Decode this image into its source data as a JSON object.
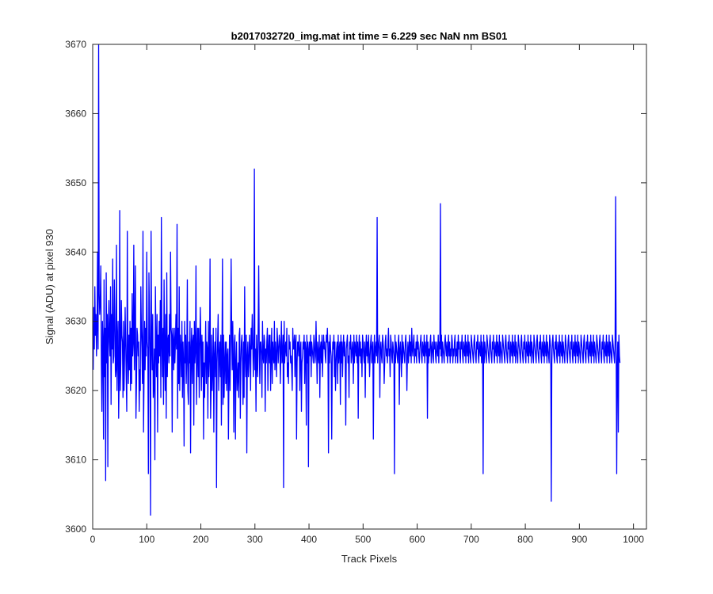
{
  "chart_data": {
    "type": "line",
    "title": "b2017032720_img.mat int time = 6.229 sec  NaN nm BS01",
    "xlabel": "Track Pixels",
    "ylabel": "Signal (ADU) at pixel 930",
    "xlim": [
      0,
      1024
    ],
    "ylim": [
      3600,
      3670
    ],
    "xticks": [
      0,
      100,
      200,
      300,
      400,
      500,
      600,
      700,
      800,
      900,
      1000
    ],
    "yticks": [
      3600,
      3610,
      3620,
      3630,
      3640,
      3650,
      3660,
      3670
    ],
    "grid": false,
    "legend": "none",
    "series": [
      {
        "color": "#0000ff",
        "x_start": 1,
        "x_step": 1,
        "values": [
          3623,
          3632,
          3626,
          3635,
          3628,
          3631,
          3625,
          3629,
          3640,
          3626,
          3670,
          3634,
          3631,
          3633,
          3638,
          3624,
          3617,
          3630,
          3627,
          3613,
          3636,
          3622,
          3629,
          3607,
          3637,
          3624,
          3631,
          3609,
          3629,
          3633,
          3627,
          3625,
          3635,
          3618,
          3631,
          3626,
          3639,
          3624,
          3625,
          3636,
          3631,
          3622,
          3623,
          3641,
          3620,
          3627,
          3630,
          3616,
          3622,
          3646,
          3620,
          3624,
          3633,
          3628,
          3627,
          3619,
          3630,
          3620,
          3625,
          3632,
          3627,
          3622,
          3617,
          3643,
          3625,
          3621,
          3628,
          3623,
          3630,
          3620,
          3629,
          3621,
          3634,
          3625,
          3627,
          3641,
          3623,
          3628,
          3638,
          3616,
          3621,
          3629,
          3628,
          3625,
          3627,
          3617,
          3623,
          3620,
          3635,
          3629,
          3626,
          3621,
          3643,
          3614,
          3622,
          3630,
          3623,
          3629,
          3625,
          3640,
          3627,
          3626,
          3608,
          3637,
          3631,
          3625,
          3602,
          3643,
          3627,
          3623,
          3631,
          3619,
          3621,
          3626,
          3610,
          3635,
          3627,
          3622,
          3631,
          3614,
          3628,
          3624,
          3630,
          3625,
          3633,
          3619,
          3645,
          3627,
          3622,
          3629,
          3618,
          3636,
          3626,
          3620,
          3631,
          3616,
          3637,
          3622,
          3627,
          3628,
          3624,
          3631,
          3625,
          3640,
          3629,
          3628,
          3614,
          3629,
          3627,
          3623,
          3629,
          3624,
          3627,
          3631,
          3626,
          3644,
          3616,
          3629,
          3621,
          3635,
          3620,
          3628,
          3626,
          3622,
          3630,
          3619,
          3627,
          3624,
          3612,
          3630,
          3624,
          3628,
          3621,
          3625,
          3636,
          3620,
          3618,
          3627,
          3624,
          3630,
          3611,
          3626,
          3629,
          3621,
          3627,
          3628,
          3615,
          3630,
          3624,
          3626,
          3638,
          3618,
          3625,
          3629,
          3622,
          3629,
          3619,
          3626,
          3632,
          3627,
          3620,
          3628,
          3622,
          3627,
          3613,
          3624,
          3619,
          3625,
          3630,
          3621,
          3627,
          3626,
          3616,
          3630,
          3622,
          3625,
          3639,
          3616,
          3620,
          3628,
          3620,
          3623,
          3629,
          3614,
          3625,
          3627,
          3622,
          3629,
          3606,
          3624,
          3627,
          3631,
          3620,
          3625,
          3627,
          3622,
          3628,
          3615,
          3625,
          3639,
          3618,
          3628,
          3619,
          3624,
          3627,
          3621,
          3627,
          3620,
          3625,
          3626,
          3613,
          3622,
          3628,
          3620,
          3627,
          3639,
          3629,
          3623,
          3630,
          3624,
          3614,
          3627,
          3628,
          3613,
          3624,
          3627,
          3620,
          3622,
          3624,
          3619,
          3628,
          3629,
          3616,
          3624,
          3627,
          3628,
          3624,
          3618,
          3627,
          3619,
          3635,
          3625,
          3622,
          3628,
          3611,
          3625,
          3627,
          3622,
          3624,
          3628,
          3626,
          3620,
          3629,
          3626,
          3631,
          3627,
          3622,
          3625,
          3652,
          3623,
          3626,
          3617,
          3628,
          3624,
          3622,
          3629,
          3638,
          3626,
          3621,
          3627,
          3627,
          3625,
          3619,
          3630,
          3625,
          3624,
          3628,
          3627,
          3617,
          3626,
          3624,
          3627,
          3629,
          3620,
          3626,
          3628,
          3624,
          3628,
          3620,
          3625,
          3629,
          3621,
          3627,
          3625,
          3624,
          3630,
          3623,
          3627,
          3625,
          3622,
          3629,
          3627,
          3624,
          3626,
          3628,
          3627,
          3621,
          3626,
          3630,
          3624,
          3625,
          3628,
          3606,
          3630,
          3624,
          3626,
          3627,
          3625,
          3629,
          3622,
          3624,
          3621,
          3628,
          3626,
          3627,
          3624,
          3625,
          3623,
          3620,
          3629,
          3626,
          3626,
          3628,
          3622,
          3627,
          3628,
          3613,
          3624,
          3627,
          3627,
          3625,
          3628,
          3620,
          3626,
          3627,
          3617,
          3624,
          3625,
          3627,
          3626,
          3628,
          3621,
          3627,
          3626,
          3615,
          3628,
          3624,
          3627,
          3609,
          3626,
          3627,
          3625,
          3628,
          3622,
          3627,
          3626,
          3625,
          3624,
          3628,
          3627,
          3624,
          3625,
          3630,
          3626,
          3621,
          3627,
          3625,
          3624,
          3628,
          3619,
          3626,
          3627,
          3624,
          3628,
          3622,
          3626,
          3628,
          3626,
          3627,
          3625,
          3624,
          3628,
          3627,
          3629,
          3626,
          3611,
          3627,
          3624,
          3628,
          3626,
          3625,
          3613,
          3624,
          3627,
          3626,
          3628,
          3622,
          3627,
          3620,
          3624,
          3626,
          3627,
          3621,
          3628,
          3624,
          3626,
          3627,
          3618,
          3628,
          3624,
          3627,
          3622,
          3626,
          3628,
          3625,
          3627,
          3624,
          3615,
          3626,
          3627,
          3628,
          3624,
          3625,
          3619,
          3627,
          3626,
          3628,
          3624,
          3625,
          3627,
          3626,
          3621,
          3628,
          3624,
          3627,
          3626,
          3625,
          3628,
          3624,
          3627,
          3616,
          3626,
          3628,
          3625,
          3627,
          3624,
          3626,
          3622,
          3628,
          3627,
          3625,
          3624,
          3627,
          3619,
          3626,
          3628,
          3625,
          3627,
          3624,
          3628,
          3626,
          3622,
          3625,
          3627,
          3628,
          3624,
          3626,
          3627,
          3613,
          3625,
          3628,
          3624,
          3626,
          3627,
          3625,
          3645,
          3624,
          3626,
          3627,
          3628,
          3619,
          3626,
          3627,
          3625,
          3624,
          3628,
          3627,
          3626,
          3621,
          3624,
          3627,
          3628,
          3625,
          3626,
          3624,
          3627,
          3629,
          3625,
          3626,
          3622,
          3628,
          3627,
          3625,
          3624,
          3627,
          3626,
          3625,
          3608,
          3628,
          3624,
          3627,
          3626,
          3625,
          3624,
          3627,
          3628,
          3618,
          3626,
          3627,
          3625,
          3622,
          3628,
          3624,
          3627,
          3626,
          3625,
          3624,
          3627,
          3628,
          3626,
          3620,
          3625,
          3627,
          3624,
          3626,
          3628,
          3625,
          3627,
          3624,
          3629,
          3626,
          3625,
          3627,
          3628,
          3624,
          3626,
          3625,
          3627,
          3624,
          3628,
          3626,
          3627,
          3625,
          3624,
          3626,
          3627,
          3628,
          3625,
          3624,
          3627,
          3626,
          3625,
          3628,
          3624,
          3627,
          3626,
          3625,
          3628,
          3616,
          3627,
          3624,
          3626,
          3625,
          3627,
          3628,
          3624,
          3626,
          3627,
          3625,
          3624,
          3628,
          3626,
          3627,
          3625,
          3624,
          3627,
          3626,
          3625,
          3628,
          3624,
          3627,
          3626,
          3647,
          3625,
          3628,
          3624,
          3627,
          3626,
          3625,
          3624,
          3627,
          3628,
          3626,
          3625,
          3627,
          3624,
          3626,
          3628,
          3625,
          3627,
          3624,
          3626,
          3625,
          3628,
          3627,
          3624,
          3626,
          3625,
          3627,
          3628,
          3624,
          3626,
          3625,
          3627,
          3624,
          3628,
          3626,
          3627,
          3625,
          3624,
          3627,
          3626,
          3628,
          3625,
          3624,
          3627,
          3626,
          3625,
          3628,
          3624,
          3627,
          3626,
          3625,
          3628,
          3624,
          3627,
          3626,
          3625,
          3624,
          3628,
          3627,
          3626,
          3625,
          3624,
          3627,
          3628,
          3626,
          3625,
          3624,
          3627,
          3626,
          3628,
          3625,
          3624,
          3627,
          3626,
          3625,
          3628,
          3624,
          3627,
          3626,
          3608,
          3628,
          3624,
          3627,
          3626,
          3625,
          3624,
          3628,
          3627,
          3626,
          3625,
          3624,
          3627,
          3628,
          3626,
          3625,
          3624,
          3627,
          3626,
          3628,
          3625,
          3624,
          3627,
          3626,
          3625,
          3628,
          3624,
          3627,
          3626,
          3625,
          3628,
          3624,
          3627,
          3626,
          3625,
          3624,
          3628,
          3627,
          3626,
          3625,
          3624,
          3627,
          3628,
          3626,
          3625,
          3624,
          3627,
          3626,
          3628,
          3625,
          3624,
          3627,
          3626,
          3625,
          3628,
          3624,
          3627,
          3626,
          3625,
          3628,
          3624,
          3627,
          3626,
          3625,
          3624,
          3628,
          3627,
          3626,
          3625,
          3624,
          3627,
          3628,
          3626,
          3625,
          3624,
          3627,
          3626,
          3628,
          3625,
          3624,
          3627,
          3626,
          3625,
          3628,
          3624,
          3627,
          3626,
          3625,
          3628,
          3624,
          3627,
          3626,
          3625,
          3624,
          3628,
          3627,
          3626,
          3625,
          3624,
          3627,
          3628,
          3626,
          3625,
          3624,
          3627,
          3626,
          3628,
          3625,
          3624,
          3627,
          3626,
          3625,
          3628,
          3624,
          3627,
          3626,
          3625,
          3628,
          3624,
          3627,
          3626,
          3625,
          3624,
          3628,
          3627,
          3626,
          3604,
          3624,
          3627,
          3628,
          3626,
          3625,
          3624,
          3627,
          3626,
          3628,
          3625,
          3624,
          3627,
          3626,
          3625,
          3628,
          3624,
          3627,
          3626,
          3625,
          3628,
          3624,
          3627,
          3626,
          3625,
          3624,
          3628,
          3627,
          3626,
          3625,
          3624,
          3627,
          3628,
          3626,
          3625,
          3624,
          3627,
          3626,
          3628,
          3625,
          3624,
          3627,
          3626,
          3625,
          3628,
          3624,
          3627,
          3626,
          3625,
          3628,
          3624,
          3627,
          3626,
          3625,
          3624,
          3628,
          3627,
          3626,
          3625,
          3624,
          3627,
          3628,
          3626,
          3625,
          3624,
          3627,
          3626,
          3628,
          3625,
          3624,
          3627,
          3626,
          3625,
          3628,
          3624,
          3627,
          3626,
          3625,
          3628,
          3624,
          3627,
          3626,
          3625,
          3624,
          3628,
          3627,
          3626,
          3625,
          3624,
          3627,
          3628,
          3626,
          3625,
          3624,
          3627,
          3626,
          3628,
          3625,
          3624,
          3627,
          3626,
          3625,
          3628,
          3624,
          3627,
          3626,
          3625,
          3628,
          3624,
          3627,
          3626,
          3625,
          3624,
          3628,
          3627,
          3626,
          3625,
          3624,
          3627,
          3648,
          3626,
          3608,
          3624,
          3627,
          3614,
          3628,
          3625,
          3624
        ]
      }
    ]
  }
}
